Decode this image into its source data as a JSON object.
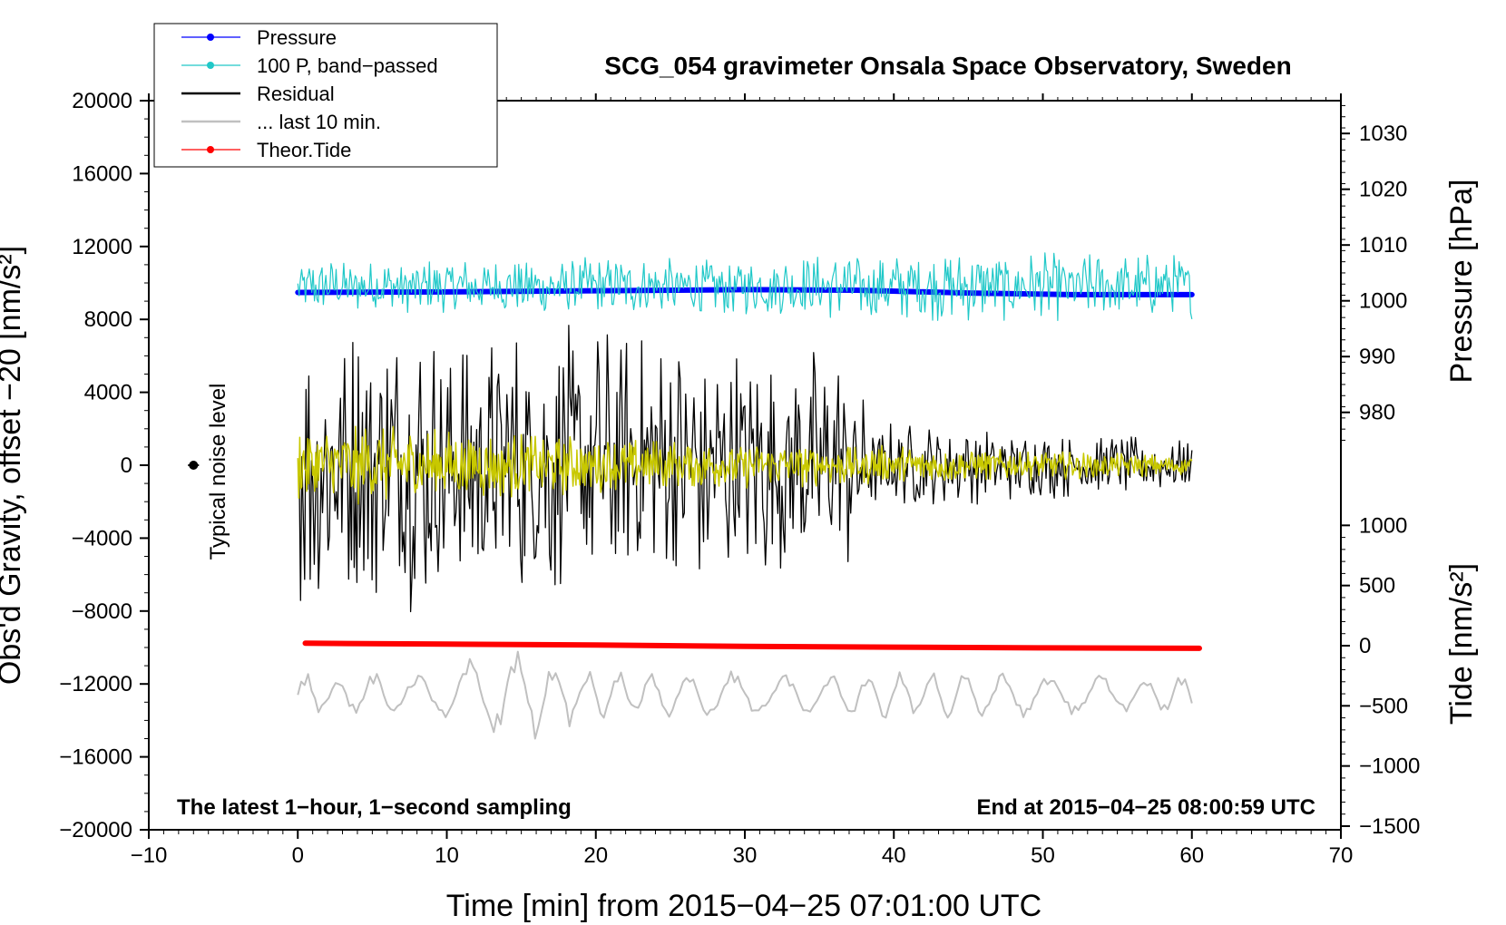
{
  "chart_data": {
    "type": "line",
    "title": "SCG_054 gravimeter Onsala Space Observatory, Sweden",
    "xlabel": "Time [min] from 2015−04−25 07:01:00 UTC",
    "ylabel_left": "Obs'd Gravity, offset −20 [nm/s²]",
    "ylabel_right_pressure": "Pressure [hPa]",
    "ylabel_right_tide": "Tide [nm/s²]",
    "xlim": [
      -10,
      70
    ],
    "ylim_left": [
      -20000,
      20000
    ],
    "x_ticks": [
      -10,
      0,
      10,
      20,
      30,
      40,
      50,
      60,
      70
    ],
    "x_tick_labels": [
      "−10",
      "0",
      "10",
      "20",
      "30",
      "40",
      "50",
      "60",
      "70"
    ],
    "y_left_ticks": [
      20000,
      16000,
      12000,
      8000,
      4000,
      0,
      -4000,
      -8000,
      -12000,
      -16000,
      -20000
    ],
    "y_left_tick_labels": [
      "20000",
      "16000",
      "12000",
      "8000",
      "4000",
      "0",
      "−4000",
      "−8000",
      "−12000",
      "−16000",
      "−20000"
    ],
    "pressure_ticks": [
      1030,
      1020,
      1010,
      1000,
      990,
      980
    ],
    "pressure_tick_labels": [
      "1030",
      "1020",
      "1010",
      "1000",
      "990",
      "980"
    ],
    "tide_ticks": [
      1000,
      500,
      0,
      -500,
      -1000,
      -1500
    ],
    "tide_tick_labels": [
      "1000",
      "500",
      "0",
      "−500",
      "−1000",
      "−1500"
    ],
    "pressure_axis_map": {
      "value_980": 980,
      "left_equiv_980": 2900,
      "value_1030": 1030,
      "left_equiv_1030": 18200
    },
    "tide_axis_map": {
      "value_0": 0,
      "left_equiv_0": -9900,
      "value_1000": 1000,
      "left_equiv_1000": -3300
    },
    "legend": [
      {
        "label": "Pressure",
        "color": "#0000ff",
        "marker": true
      },
      {
        "label": "100 P, band−passed",
        "color": "#20c8c8",
        "marker": true
      },
      {
        "label": "Residual",
        "color": "#000000",
        "marker": false
      },
      {
        "label": "... last 10 min.",
        "color": "#c0c0c0",
        "marker": false
      },
      {
        "label": "Theor.Tide",
        "color": "#ff0000",
        "marker": true
      }
    ],
    "annotations": {
      "noise_label": "Typical noise level",
      "bottom_left": "The latest 1−hour, 1−second sampling",
      "bottom_right": "End at 2015−04−25 08:00:59 UTC"
    },
    "noise_marker": {
      "x": -7,
      "y": 0,
      "color": "#000000"
    },
    "series": [
      {
        "name": "Pressure",
        "color": "#0000ff",
        "axis": "pressure",
        "x": [
          0.0,
          10,
          20,
          30,
          37.5,
          45,
          52,
          60.0
        ],
        "y": [
          1001.5,
          1001.6,
          1001.8,
          1002.0,
          1001.9,
          1001.4,
          1001.1,
          1001.1
        ]
      },
      {
        "name": "100 P, band−passed",
        "color": "#20c8c8",
        "axis": "left",
        "center": 9800,
        "x_range": [
          0,
          60
        ],
        "amplitude_env": [
          [
            0,
            1500
          ],
          [
            30,
            1700
          ],
          [
            45,
            2000
          ],
          [
            60,
            1800
          ]
        ]
      },
      {
        "name": "Residual",
        "color": "#000000",
        "axis": "left",
        "center": 0,
        "x_range": [
          0,
          60
        ],
        "amplitude_env": [
          [
            0,
            8200
          ],
          [
            10,
            8000
          ],
          [
            20,
            7800
          ],
          [
            30,
            7000
          ],
          [
            37.5,
            6500
          ],
          [
            38.5,
            2500
          ],
          [
            45,
            2200
          ],
          [
            60,
            1400
          ]
        ]
      },
      {
        "name": "Yellow band",
        "color": "#c8c800",
        "axis": "left",
        "center": 0,
        "x_range": [
          0,
          60
        ],
        "amplitude_env": [
          [
            0,
            2400
          ],
          [
            10,
            2000
          ],
          [
            20,
            1600
          ],
          [
            30,
            1300
          ],
          [
            40,
            1100
          ],
          [
            50,
            800
          ],
          [
            60,
            600
          ]
        ]
      },
      {
        "name": "... last 10 min.",
        "color": "#c0c0c0",
        "axis": "left",
        "center": -12600,
        "x_range": [
          0,
          60
        ],
        "amplitude_env": [
          [
            0,
            1300
          ],
          [
            10,
            1400
          ],
          [
            14,
            3000
          ],
          [
            20,
            1400
          ],
          [
            40,
            1300
          ],
          [
            60,
            1200
          ]
        ]
      },
      {
        "name": "Theor.Tide",
        "color": "#ff0000",
        "axis": "tide",
        "x": [
          0.5,
          10,
          20,
          30,
          40,
          50,
          60.5
        ],
        "y": [
          20,
          13,
          5,
          -5,
          -12,
          -18,
          -22
        ]
      }
    ]
  }
}
